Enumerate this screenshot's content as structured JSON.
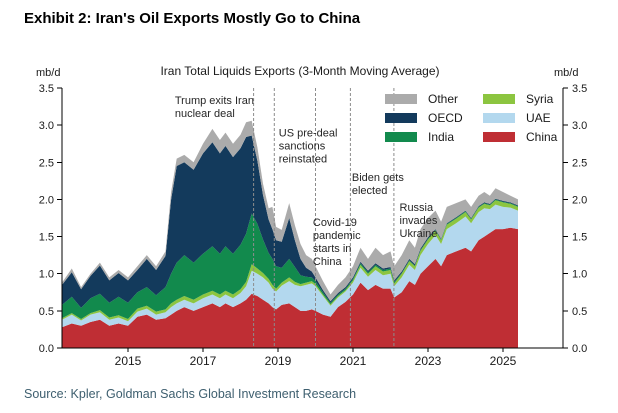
{
  "header": {
    "title": "Exhibit 2: Iran's Oil Exports Mostly Go to China"
  },
  "footer": {
    "source": "Source: Kpler, Goldman Sachs Global Investment Research"
  },
  "chart_data": {
    "type": "area",
    "stacked": true,
    "title": "Iran Total Liquids Exports (3-Month Moving Average)",
    "unit_left": "mb/d",
    "unit_right": "mb/d",
    "ylim": [
      0,
      3.5
    ],
    "yticks": [
      0,
      0.5,
      1.0,
      1.5,
      2.0,
      2.5,
      3.0,
      3.5
    ],
    "xticks": [
      2015,
      2017,
      2019,
      2021,
      2023,
      2025
    ],
    "grid": false,
    "legend_position": "top-right-inside",
    "legend_columns": [
      [
        "Other",
        "OECD",
        "India"
      ],
      [
        "Syria",
        "UAE",
        "China"
      ]
    ],
    "x": [
      2013.24,
      2013.5,
      2013.75,
      2014.0,
      2014.25,
      2014.5,
      2014.75,
      2015.0,
      2015.25,
      2015.5,
      2015.75,
      2016.0,
      2016.15,
      2016.3,
      2016.5,
      2016.75,
      2017.0,
      2017.25,
      2017.45,
      2017.6,
      2017.8,
      2018.0,
      2018.15,
      2018.3,
      2018.45,
      2018.6,
      2018.75,
      2018.85,
      2018.95,
      2019.1,
      2019.3,
      2019.45,
      2019.6,
      2019.75,
      2019.9,
      2020.0,
      2020.2,
      2020.4,
      2020.6,
      2020.8,
      2021.0,
      2021.2,
      2021.4,
      2021.6,
      2021.8,
      2022.0,
      2022.1,
      2022.3,
      2022.5,
      2022.65,
      2022.8,
      2023.0,
      2023.2,
      2023.35,
      2023.5,
      2023.75,
      2024.0,
      2024.15,
      2024.35,
      2024.5,
      2024.65,
      2024.8,
      2025.0,
      2025.2,
      2025.4
    ],
    "series": [
      {
        "name": "China",
        "color": "#bf2e34",
        "values": [
          0.28,
          0.33,
          0.3,
          0.35,
          0.38,
          0.3,
          0.33,
          0.3,
          0.42,
          0.45,
          0.38,
          0.4,
          0.45,
          0.5,
          0.55,
          0.5,
          0.55,
          0.6,
          0.55,
          0.6,
          0.55,
          0.6,
          0.65,
          0.73,
          0.7,
          0.65,
          0.6,
          0.55,
          0.52,
          0.58,
          0.6,
          0.55,
          0.5,
          0.5,
          0.52,
          0.5,
          0.45,
          0.42,
          0.55,
          0.62,
          0.72,
          0.88,
          0.78,
          0.85,
          0.8,
          0.8,
          0.68,
          0.75,
          0.9,
          0.85,
          1.0,
          1.1,
          1.2,
          1.1,
          1.25,
          1.3,
          1.35,
          1.3,
          1.45,
          1.5,
          1.55,
          1.6,
          1.6,
          1.62,
          1.6
        ]
      },
      {
        "name": "UAE",
        "color": "#b3d8ee",
        "values": [
          0.1,
          0.12,
          0.07,
          0.1,
          0.1,
          0.08,
          0.08,
          0.06,
          0.07,
          0.08,
          0.07,
          0.08,
          0.1,
          0.1,
          0.1,
          0.1,
          0.12,
          0.12,
          0.12,
          0.12,
          0.12,
          0.14,
          0.18,
          0.31,
          0.3,
          0.3,
          0.28,
          0.25,
          0.24,
          0.26,
          0.3,
          0.3,
          0.33,
          0.35,
          0.35,
          0.33,
          0.25,
          0.15,
          0.13,
          0.14,
          0.16,
          0.2,
          0.18,
          0.2,
          0.18,
          0.2,
          0.15,
          0.2,
          0.22,
          0.2,
          0.25,
          0.3,
          0.32,
          0.3,
          0.35,
          0.38,
          0.42,
          0.38,
          0.38,
          0.38,
          0.32,
          0.33,
          0.3,
          0.27,
          0.25
        ]
      },
      {
        "name": "Syria",
        "color": "#8cc540",
        "values": [
          0.02,
          0.02,
          0.02,
          0.02,
          0.03,
          0.03,
          0.03,
          0.03,
          0.04,
          0.04,
          0.04,
          0.04,
          0.05,
          0.05,
          0.05,
          0.05,
          0.05,
          0.05,
          0.05,
          0.05,
          0.05,
          0.05,
          0.06,
          0.09,
          0.07,
          0.06,
          0.05,
          0.05,
          0.04,
          0.04,
          0.05,
          0.04,
          0.03,
          0.03,
          0.03,
          0.03,
          0.02,
          0.02,
          0.02,
          0.02,
          0.03,
          0.04,
          0.04,
          0.05,
          0.05,
          0.05,
          0.04,
          0.05,
          0.05,
          0.05,
          0.06,
          0.06,
          0.06,
          0.05,
          0.06,
          0.06,
          0.06,
          0.05,
          0.06,
          0.06,
          0.05,
          0.06,
          0.06,
          0.05,
          0.05
        ]
      },
      {
        "name": "India",
        "color": "#128a4d",
        "values": [
          0.18,
          0.22,
          0.15,
          0.2,
          0.22,
          0.2,
          0.25,
          0.22,
          0.22,
          0.25,
          0.22,
          0.3,
          0.4,
          0.5,
          0.55,
          0.5,
          0.55,
          0.6,
          0.55,
          0.6,
          0.55,
          0.6,
          0.65,
          0.68,
          0.6,
          0.45,
          0.35,
          0.35,
          0.3,
          0.2,
          0.25,
          0.2,
          0.12,
          0.08,
          0.05,
          0.04,
          0.03,
          0.02,
          0.02,
          0.02,
          0.02,
          0.02,
          0.02,
          0.02,
          0.02,
          0.02,
          0.02,
          0.01,
          0.01,
          0.01,
          0.01,
          0.01,
          0.01,
          0.01,
          0.01,
          0.01,
          0.01,
          0.01,
          0.01,
          0.01,
          0.01,
          0.01,
          0.01,
          0.01,
          0.01
        ]
      },
      {
        "name": "OECD",
        "color": "#133a5c",
        "values": [
          0.27,
          0.33,
          0.25,
          0.3,
          0.38,
          0.3,
          0.32,
          0.3,
          0.3,
          0.38,
          0.34,
          0.42,
          1.0,
          1.3,
          1.25,
          1.25,
          1.35,
          1.4,
          1.35,
          1.35,
          1.3,
          1.3,
          1.3,
          1.05,
          0.85,
          0.6,
          0.45,
          0.4,
          0.35,
          0.35,
          0.55,
          0.36,
          0.22,
          0.12,
          0.08,
          0.05,
          0.03,
          0.02,
          0.02,
          0.02,
          0.02,
          0.02,
          0.02,
          0.02,
          0.02,
          0.02,
          0.02,
          0.02,
          0.02,
          0.02,
          0.02,
          0.02,
          0.01,
          0.01,
          0.01,
          0.01,
          0.01,
          0.01,
          0.01,
          0.01,
          0.01,
          0.01,
          0.01,
          0.01,
          0.01
        ]
      },
      {
        "name": "Other",
        "color": "#ababab",
        "values": [
          0.03,
          0.05,
          0.03,
          0.03,
          0.04,
          0.04,
          0.04,
          0.04,
          0.05,
          0.05,
          0.05,
          0.06,
          0.1,
          0.1,
          0.1,
          0.1,
          0.13,
          0.18,
          0.18,
          0.18,
          0.18,
          0.18,
          0.2,
          0.2,
          0.18,
          0.15,
          0.15,
          0.3,
          0.18,
          0.16,
          0.2,
          0.2,
          0.2,
          0.17,
          0.17,
          0.15,
          0.12,
          0.09,
          0.11,
          0.13,
          0.15,
          0.19,
          0.16,
          0.21,
          0.18,
          0.21,
          0.19,
          0.22,
          0.25,
          0.22,
          0.26,
          0.26,
          0.25,
          0.23,
          0.22,
          0.19,
          0.15,
          0.15,
          0.14,
          0.14,
          0.11,
          0.14,
          0.12,
          0.09,
          0.08
        ]
      }
    ],
    "annotations": [
      {
        "label": "Trump exits Iran\nnuclear deal",
        "line_year": 2018.35,
        "text_year": 2016.25,
        "text_value": 3.42
      },
      {
        "label": "US pre-deal\nsanctions\nreinstated",
        "line_year": 2018.9,
        "text_year": 2019.02,
        "text_value": 2.98
      },
      {
        "label": "Covid-19\npandemic\nstarts in\nChina",
        "line_year": 2020.0,
        "text_year": 2019.93,
        "text_value": 1.78
      },
      {
        "label": "Biden gets\nelected",
        "line_year": 2020.93,
        "text_year": 2020.97,
        "text_value": 2.38
      },
      {
        "label": "Russia\ninvades\nUkraine",
        "line_year": 2022.09,
        "text_year": 2022.24,
        "text_value": 1.98
      }
    ]
  }
}
